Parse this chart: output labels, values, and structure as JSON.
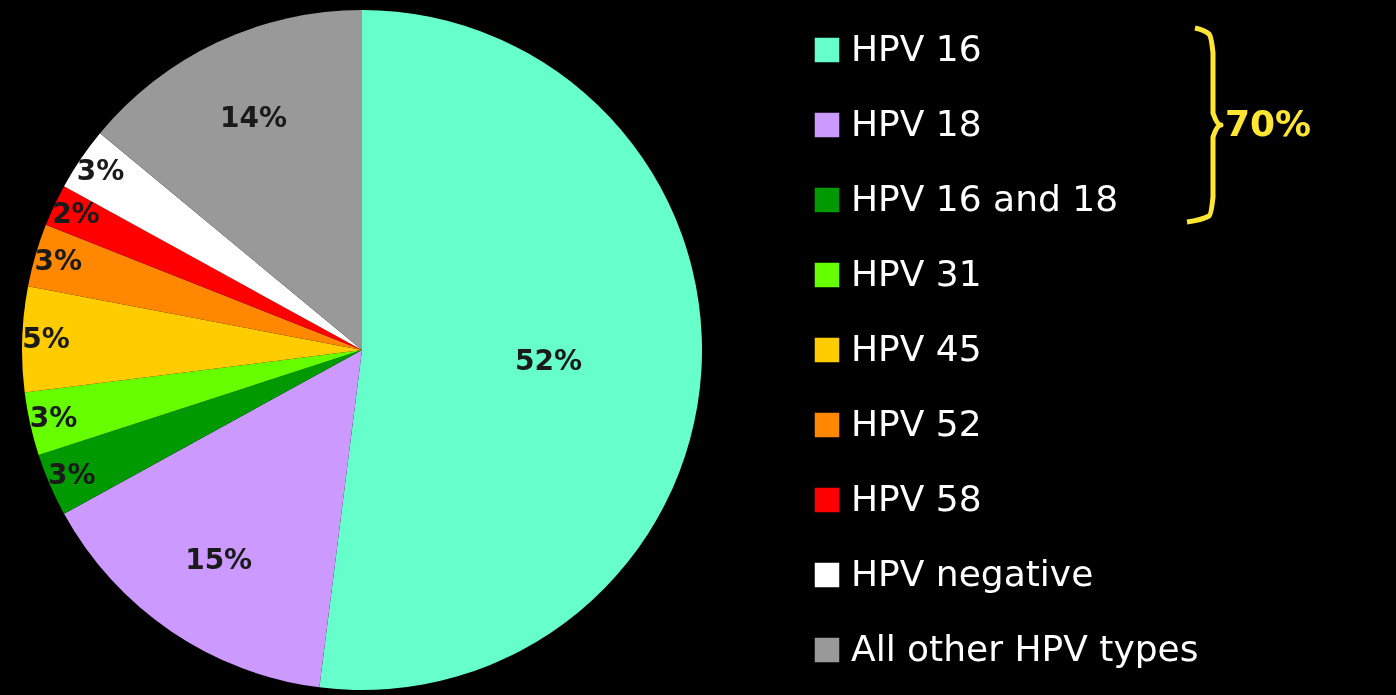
{
  "chart_data": {
    "type": "pie",
    "categories": [
      "HPV 16",
      "HPV 18",
      "HPV 16 and 18",
      "HPV 31",
      "HPV 45",
      "HPV 52",
      "HPV 58",
      "HPV negative",
      "All other HPV types"
    ],
    "values": [
      52,
      15,
      3,
      3,
      5,
      3,
      2,
      3,
      14
    ],
    "value_labels": [
      "52%",
      "15%",
      "3%",
      "3%",
      "5%",
      "3%",
      "2%",
      "3%",
      "14%"
    ],
    "colors": [
      "#66ffcc",
      "#cc99ff",
      "#009900",
      "#66ff00",
      "#ffcc00",
      "#ff8800",
      "#ff0000",
      "#ffffff",
      "#999999"
    ],
    "legend": "right",
    "annotations": [
      "70%"
    ]
  }
}
